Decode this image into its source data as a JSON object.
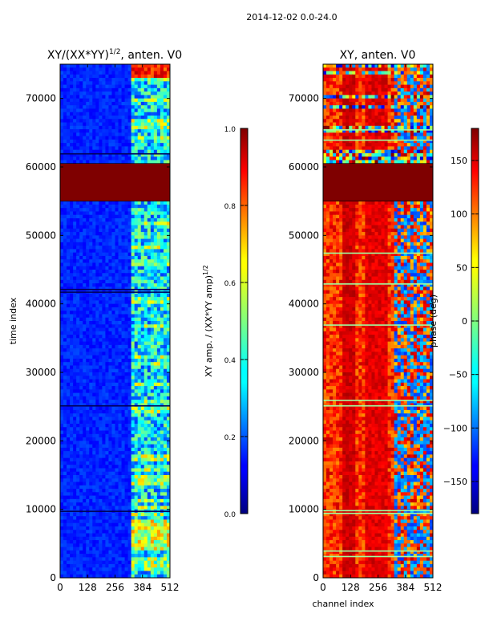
{
  "figure": {
    "suptitle": "2014-12-02 0.0-24.0"
  },
  "chart_data": [
    {
      "type": "heatmap",
      "title": "XY/(XX*YY)^1/2, anten. V0",
      "title_main": "XY/(XX*YY)",
      "title_exp": "1/2",
      "title_tail": ", anten. V0",
      "xlabel": "",
      "ylabel": "time index",
      "xlim": [
        0,
        512
      ],
      "ylim": [
        0,
        75000
      ],
      "xticks": [
        "0",
        "128",
        "256",
        "384",
        "512"
      ],
      "yticks": [
        "0",
        "10000",
        "20000",
        "30000",
        "40000",
        "50000",
        "60000",
        "70000"
      ],
      "colorbar": {
        "label": "XY amp. / (XX*YY amp)^1/2",
        "label_main": "XY amp. / (XX*YY amp)",
        "label_exp": "1/2",
        "range": [
          0.0,
          1.0
        ],
        "ticks": [
          "0.0",
          "0.2",
          "0.4",
          "0.6",
          "0.8",
          "1.0"
        ],
        "colormap": "jet"
      },
      "features": {
        "saturated_block_time": [
          55000,
          60500
        ],
        "bright_channel_range": [
          330,
          512
        ],
        "background_level": 0.12,
        "flag_row_times": [
          9800,
          25200,
          41800,
          42200,
          62000
        ]
      }
    },
    {
      "type": "heatmap",
      "title": "XY, anten. V0",
      "xlabel": "channel index",
      "ylabel": "",
      "xlim": [
        0,
        512
      ],
      "ylim": [
        0,
        75000
      ],
      "xticks": [
        "0",
        "128",
        "256",
        "384",
        "512"
      ],
      "yticks": [
        "0",
        "10000",
        "20000",
        "30000",
        "40000",
        "50000",
        "60000",
        "70000"
      ],
      "colorbar": {
        "label": "phase (deg)",
        "range": [
          -180,
          180
        ],
        "ticks": [
          "−150",
          "−100",
          "−50",
          "0",
          "50",
          "100",
          "150"
        ],
        "tick_values": [
          -150,
          -100,
          -50,
          0,
          50,
          100,
          150
        ],
        "colormap": "jet"
      },
      "features": {
        "saturated_block_time": [
          55000,
          60500
        ],
        "low_phase_channel_range": [
          330,
          512
        ],
        "background_phase_deg": 120,
        "green_row_times": [
          3200,
          4000,
          9500,
          9900,
          25200,
          26000,
          37000,
          43000,
          47500,
          55200,
          64000,
          65500
        ]
      }
    }
  ]
}
